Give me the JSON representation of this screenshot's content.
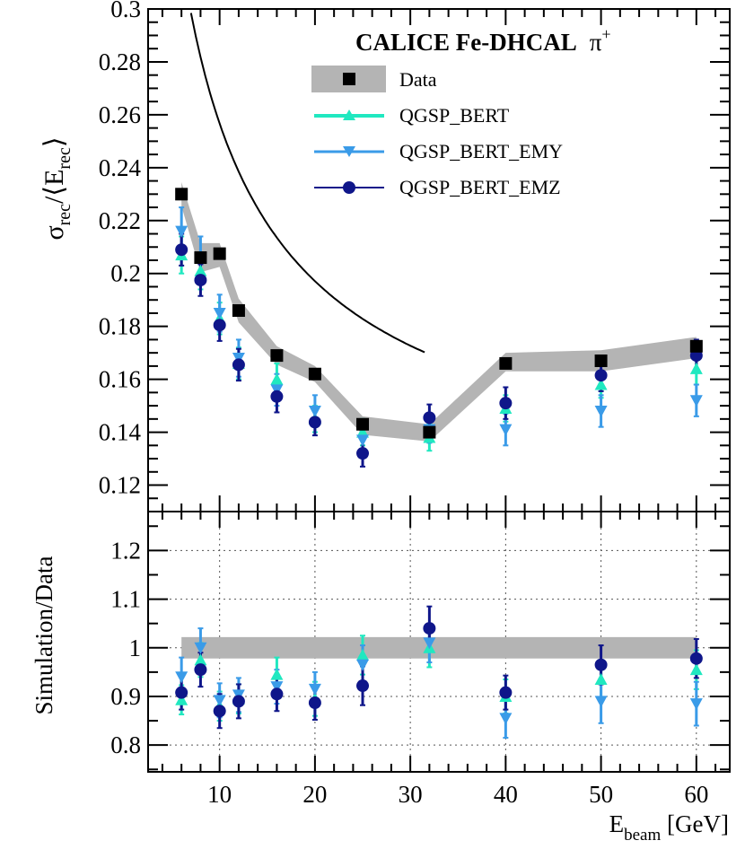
{
  "chart_data": [
    {
      "type": "scatter",
      "panel": "top",
      "title": "CALICE Fe-DHCAL  π+",
      "ylabel": "σrec/⟨Erec⟩",
      "xlim": [
        2.5,
        63.5
      ],
      "ylim": [
        0.11,
        0.3
      ],
      "yticks": [
        0.12,
        0.14,
        0.16,
        0.18,
        0.2,
        0.22,
        0.24,
        0.26,
        0.28,
        0.3
      ],
      "ytick_labels": [
        "0.12",
        "0.14",
        "0.16",
        "0.18",
        "0.2",
        "0.22",
        "0.24",
        "0.26",
        "0.28",
        "0.3"
      ],
      "x": [
        6,
        8,
        10,
        12,
        16,
        20,
        25,
        32,
        40,
        50,
        60
      ],
      "series": [
        {
          "name": "Data",
          "marker": "square",
          "color": "#000000",
          "values": [
            0.23,
            0.206,
            0.2075,
            0.186,
            0.169,
            0.162,
            0.143,
            0.14,
            0.166,
            0.167,
            0.1725
          ],
          "band_low": [
            0.2255,
            0.2005,
            0.2025,
            0.1815,
            0.1655,
            0.159,
            0.139,
            0.1365,
            0.163,
            0.163,
            0.168
          ],
          "band_high": [
            0.2345,
            0.2115,
            0.2115,
            0.1905,
            0.1725,
            0.165,
            0.146,
            0.143,
            0.17,
            0.171,
            0.176
          ]
        },
        {
          "name": "QGSP_BERT",
          "marker": "triangle-up",
          "color": "#20e8c0",
          "values": [
            0.207,
            0.201,
            0.183,
            0.166,
            0.16,
            0.145,
            0.14,
            0.138,
            0.149,
            0.158,
            0.164
          ],
          "errors": [
            0.007,
            0.007,
            0.006,
            0.006,
            0.006,
            0.005,
            0.005,
            0.005,
            0.005,
            0.005,
            0.006
          ]
        },
        {
          "name": "QGSP_BERT_EMY",
          "marker": "triangle-down",
          "color": "#3a9be8",
          "values": [
            0.216,
            0.206,
            0.185,
            0.168,
            0.156,
            0.148,
            0.137,
            0.141,
            0.141,
            0.148,
            0.152
          ],
          "errors": [
            0.009,
            0.008,
            0.007,
            0.007,
            0.006,
            0.006,
            0.005,
            0.005,
            0.006,
            0.006,
            0.006
          ]
        },
        {
          "name": "QGSP_BERT_EMZ",
          "marker": "circle",
          "color": "#0f168a",
          "values": [
            0.209,
            0.1975,
            0.1805,
            0.1655,
            0.1535,
            0.1438,
            0.132,
            0.1455,
            0.151,
            0.1615,
            0.169
          ],
          "errors": [
            0.006,
            0.006,
            0.006,
            0.006,
            0.006,
            0.005,
            0.005,
            0.005,
            0.006,
            0.006,
            0.006
          ]
        }
      ],
      "fit": {
        "name": "fit",
        "color": "#000000",
        "x_range": [
          3,
          31.5
        ],
        "formula": "sqrt((a/sqrt(E))^2 + c^2)",
        "a": 0.7356,
        "c": 0.1086
      }
    },
    {
      "type": "scatter",
      "panel": "bottom",
      "xlabel": "Ebeam [GeV]",
      "ylabel": "Simulation/Data",
      "xlim": [
        2.5,
        63.5
      ],
      "ylim": [
        0.745,
        1.28
      ],
      "xticks": [
        10,
        20,
        30,
        40,
        50,
        60
      ],
      "xtick_labels": [
        "10",
        "20",
        "30",
        "40",
        "50",
        "60"
      ],
      "yticks": [
        0.8,
        0.9,
        1.0,
        1.1,
        1.2
      ],
      "ytick_labels": [
        "0.8",
        "0.9",
        "1",
        "1.1",
        "1.2"
      ],
      "grid": true,
      "band": {
        "x_range": [
          6,
          60
        ],
        "low": 0.978,
        "high": 1.022
      },
      "x": [
        6,
        8,
        10,
        12,
        16,
        20,
        25,
        32,
        40,
        50,
        60
      ],
      "series": [
        {
          "name": "QGSP_BERT",
          "marker": "triangle-up",
          "color": "#20e8c0",
          "values": [
            0.893,
            0.975,
            0.88,
            0.895,
            0.945,
            0.895,
            0.985,
            1.0,
            0.9,
            0.935,
            0.955
          ],
          "errors": [
            0.03,
            0.035,
            0.03,
            0.03,
            0.035,
            0.035,
            0.04,
            0.04,
            0.035,
            0.04,
            0.04
          ]
        },
        {
          "name": "QGSP_BERT_EMY",
          "marker": "triangle-down",
          "color": "#3a9be8",
          "values": [
            0.94,
            1.0,
            0.892,
            0.903,
            0.92,
            0.915,
            0.965,
            1.01,
            0.855,
            0.89,
            0.885
          ],
          "errors": [
            0.04,
            0.04,
            0.035,
            0.035,
            0.035,
            0.035,
            0.04,
            0.04,
            0.04,
            0.045,
            0.045
          ]
        },
        {
          "name": "QGSP_BERT_EMZ",
          "marker": "circle",
          "color": "#0f168a",
          "values": [
            0.908,
            0.955,
            0.87,
            0.89,
            0.905,
            0.887,
            0.922,
            1.04,
            0.908,
            0.965,
            0.978
          ],
          "errors": [
            0.035,
            0.035,
            0.035,
            0.035,
            0.035,
            0.035,
            0.04,
            0.045,
            0.035,
            0.04,
            0.04
          ]
        }
      ]
    }
  ],
  "legend": {
    "title": "CALICE Fe-DHCAL",
    "particle": "π",
    "particle_sup": "+",
    "entries": [
      {
        "label": "Data",
        "color": "#000000",
        "marker": "square"
      },
      {
        "label": "QGSP_BERT",
        "color": "#20e8c0",
        "marker": "triangle-up"
      },
      {
        "label": "QGSP_BERT_EMY",
        "color": "#3a9be8",
        "marker": "triangle-down"
      },
      {
        "label": "QGSP_BERT_EMZ",
        "color": "#0f168a",
        "marker": "circle"
      }
    ]
  },
  "axis_labels": {
    "top_y": {
      "main": "σ",
      "sub": "rec",
      "slash": "/⟨E",
      "sub2": "rec",
      "close": "⟩"
    },
    "bottom_y": "Simulation/Data",
    "x": {
      "main": "E",
      "sub": "beam",
      "unit": " [GeV]"
    }
  },
  "colors": {
    "band": "#b4b4b4",
    "grid": "#555555",
    "axis": "#000000"
  }
}
